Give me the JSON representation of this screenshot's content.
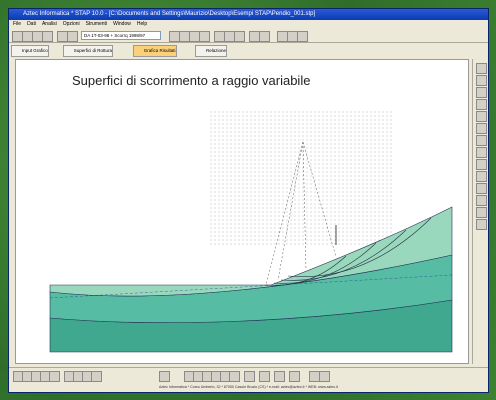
{
  "window": {
    "title": "Aztec Informatica * STAP 10.0 - [C:\\Documents and Settings\\Maurizio\\Desktop\\Esempi STAP\\Pendio_001.stp]",
    "menu": [
      "File",
      "Dati",
      "Analisi",
      "Opzioni",
      "Strumenti",
      "Window",
      "Help"
    ],
    "toolbar_field": "DA 1T-03-98 + Scorrq 1998/97",
    "tabs": [
      "Input Grafico",
      "Superfici di Rottura",
      "Grafica Risultati",
      "Relazione"
    ],
    "active_tab": 2
  },
  "drawing": {
    "title": "Superfici di scorrimento a raggio variabile"
  },
  "footer": "Aztec Informatica * Corso Umberto, 32 * 87050 Casole Bruzio (CS) * e-mail: aztec@aztec.it * WEB: www.aztec.it"
}
